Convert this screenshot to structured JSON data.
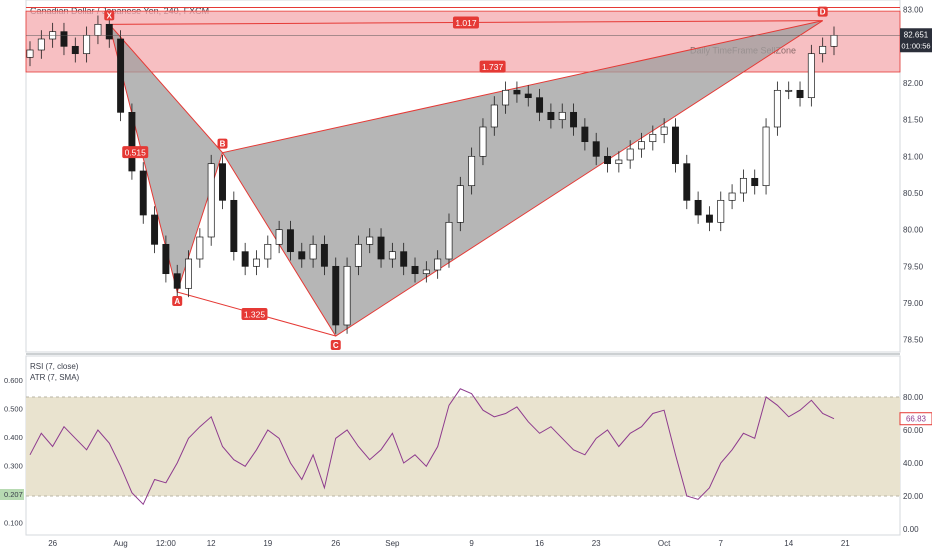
{
  "header": {
    "title": "Canadian Dollar / Japanese Yen, 240, FXCM"
  },
  "annotations": {
    "zone_label": "Daily TimeFrame SellZone"
  },
  "colors": {
    "zone_fill": "#f4a9ad",
    "zone_stroke": "#e53935",
    "pattern_fill": "#9e9e9e",
    "pattern_stroke": "#e53935",
    "badge": "#e53935",
    "candle": "#1a1a1a",
    "rsi_band": "#e9e3cf",
    "rsi_line": "#8e3b8e",
    "price_tag": "#2b2f3a",
    "rsi_tag": "#e53935",
    "atr_tag": "#b7dab2"
  },
  "chart_data": [
    {
      "type": "candlestick",
      "title": "Canadian Dollar / Japanese Yen, 240, FXCM",
      "xlabel": "",
      "ylabel": "",
      "ylim": [
        78.25,
        83.05
      ],
      "y_ticks": [
        "83.00",
        "82.50",
        "82.00",
        "81.50",
        "81.00",
        "80.50",
        "80.00",
        "79.50",
        "79.00",
        "78.50"
      ],
      "x_ticks": [
        "26",
        "Aug",
        "12:00",
        "12",
        "19",
        "26",
        "Sep",
        "9",
        "16",
        "23",
        "Oct",
        "7",
        "14",
        "21"
      ],
      "x_tick_index": [
        2,
        8,
        12,
        16,
        21,
        27,
        32,
        39,
        45,
        50,
        56,
        61,
        67,
        72
      ],
      "last_price": "82.651",
      "countdown": "01:00:56",
      "closes": [
        82.45,
        82.6,
        82.7,
        82.5,
        82.4,
        82.65,
        82.8,
        82.6,
        81.6,
        80.8,
        80.2,
        79.8,
        79.4,
        79.2,
        79.6,
        79.9,
        80.9,
        80.4,
        79.7,
        79.5,
        79.6,
        79.8,
        80.0,
        79.7,
        79.6,
        79.8,
        79.5,
        78.7,
        79.5,
        79.8,
        79.9,
        79.6,
        79.7,
        79.5,
        79.4,
        79.45,
        79.6,
        80.1,
        80.6,
        81.0,
        81.4,
        81.7,
        81.9,
        81.85,
        81.8,
        81.6,
        81.5,
        81.6,
        81.4,
        81.2,
        81.0,
        80.9,
        80.95,
        81.1,
        81.2,
        81.3,
        81.4,
        80.9,
        80.4,
        80.2,
        80.1,
        80.4,
        80.5,
        80.7,
        80.6,
        81.4,
        81.9,
        81.9,
        81.8,
        82.4,
        82.5,
        82.65
      ],
      "harmonic_pattern": {
        "points": [
          {
            "label": "X",
            "value": 82.8
          },
          {
            "label": "A",
            "value": 79.15
          },
          {
            "label": "B",
            "value": 81.05
          },
          {
            "label": "C",
            "value": 78.55
          },
          {
            "label": "D",
            "value": 82.85
          }
        ],
        "ratios": [
          "0.515",
          "1.325",
          "1.737",
          "1.017"
        ]
      },
      "sell_zone": [
        82.15,
        82.98
      ]
    },
    {
      "type": "line",
      "title": "RSI (7, close)",
      "subtitle": "ATR (7, SMA)",
      "ylim": [
        0,
        100
      ],
      "band": [
        20,
        80
      ],
      "right_ticks": [
        "80.00",
        "60.00",
        "40.00",
        "20.00",
        "0.00"
      ],
      "left_ticks": [
        "0.600",
        "0.500",
        "0.400",
        "0.300",
        "0.207",
        "0.100"
      ],
      "rsi_last": "66.83",
      "atr_last": "0.207",
      "values": [
        45,
        58,
        50,
        62,
        55,
        48,
        60,
        52,
        38,
        22,
        15,
        30,
        28,
        40,
        55,
        62,
        68,
        50,
        42,
        38,
        48,
        60,
        55,
        40,
        30,
        45,
        25,
        55,
        60,
        50,
        42,
        48,
        58,
        40,
        45,
        38,
        50,
        75,
        85,
        82,
        72,
        68,
        70,
        74,
        65,
        58,
        62,
        55,
        48,
        45,
        55,
        60,
        50,
        58,
        62,
        70,
        72,
        45,
        20,
        18,
        25,
        40,
        48,
        58,
        55,
        80,
        75,
        68,
        72,
        78,
        70,
        66.83
      ]
    }
  ]
}
